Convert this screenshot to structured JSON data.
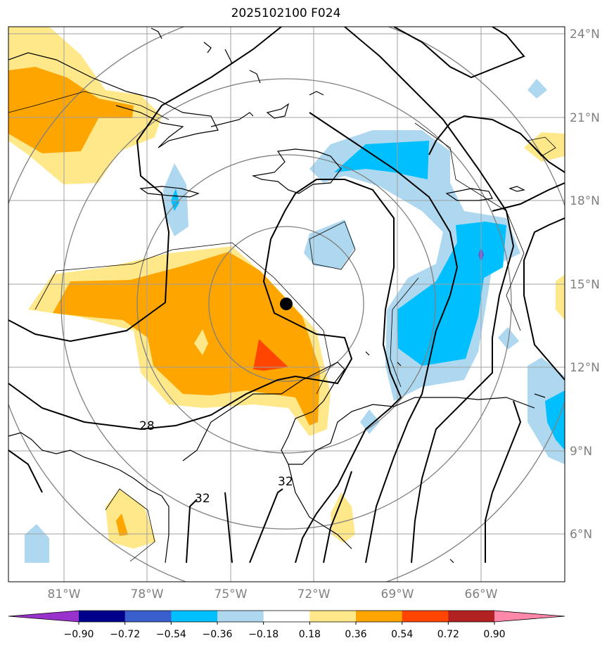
{
  "title": "2025102100 F024",
  "lat_labels": [
    "24°N",
    "21°N",
    "18°N",
    "15°N",
    "12°N",
    "9°N",
    "6°N"
  ],
  "lon_labels": [
    "81°W",
    "78°W",
    "75°W",
    "72°W",
    "69°W",
    "66°W"
  ],
  "colorbar": {
    "ticks": [
      "−0.90",
      "−0.72",
      "−0.54",
      "−0.36",
      "−0.18",
      "0.18",
      "0.36",
      "0.54",
      "0.72",
      "0.90"
    ],
    "colors": [
      "#9932cc",
      "#00008b",
      "#3a5fcd",
      "#00bfff",
      "#add8f0",
      "#ffffff",
      "#ffe88a",
      "#ffa500",
      "#ff4500",
      "#b22222",
      "#ff88aa"
    ]
  },
  "contour_labels": [
    "28",
    "32",
    "32"
  ],
  "colors": {
    "light_orange": "#ffe88a",
    "orange": "#ffa500",
    "red_orange": "#ff4500",
    "light_blue": "#add8f0",
    "blue": "#00bfff",
    "purple": "#6a5acd"
  }
}
